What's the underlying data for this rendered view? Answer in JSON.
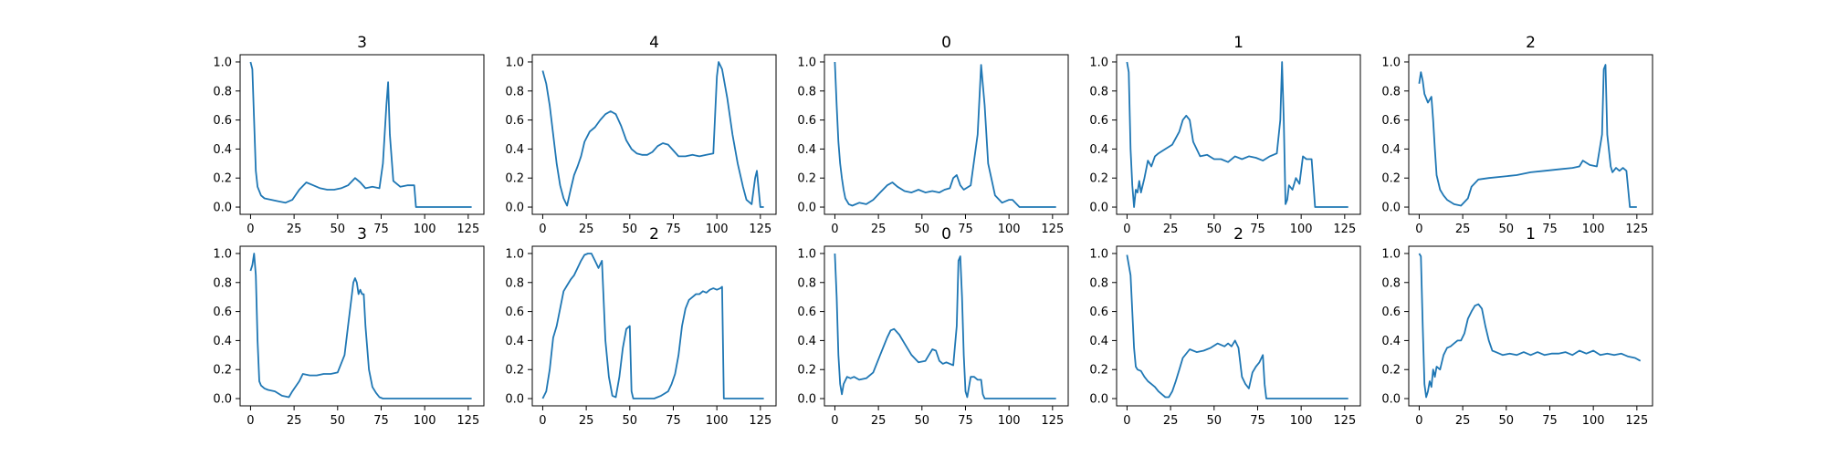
{
  "line_color": "#1f77b4",
  "chart_data": [
    {
      "type": "line",
      "title": "3",
      "xlim": [
        -6,
        134
      ],
      "ylim": [
        -0.05,
        1.05
      ],
      "xticks": [
        0,
        25,
        50,
        75,
        100,
        125
      ],
      "yticks": [
        0.0,
        0.2,
        0.4,
        0.6,
        0.8,
        1.0
      ],
      "x": [
        0,
        1,
        2,
        3,
        4,
        6,
        8,
        12,
        16,
        20,
        24,
        28,
        32,
        36,
        40,
        44,
        48,
        52,
        56,
        60,
        63,
        66,
        70,
        74,
        76,
        78,
        79,
        80,
        82,
        86,
        90,
        94,
        95,
        100,
        127
      ],
      "y": [
        1.0,
        0.95,
        0.6,
        0.25,
        0.14,
        0.08,
        0.06,
        0.05,
        0.04,
        0.03,
        0.05,
        0.12,
        0.17,
        0.15,
        0.13,
        0.12,
        0.12,
        0.13,
        0.15,
        0.2,
        0.17,
        0.13,
        0.14,
        0.13,
        0.3,
        0.7,
        0.86,
        0.5,
        0.18,
        0.14,
        0.15,
        0.15,
        0.0,
        0.0,
        0.0
      ]
    },
    {
      "type": "line",
      "title": "4",
      "xlim": [
        -6,
        134
      ],
      "ylim": [
        -0.05,
        1.05
      ],
      "xticks": [
        0,
        25,
        50,
        75,
        100,
        125
      ],
      "yticks": [
        0.0,
        0.2,
        0.4,
        0.6,
        0.8,
        1.0
      ],
      "x": [
        0,
        2,
        4,
        6,
        8,
        10,
        12,
        14,
        16,
        18,
        20,
        22,
        24,
        27,
        30,
        33,
        36,
        39,
        42,
        45,
        48,
        51,
        54,
        57,
        60,
        63,
        66,
        69,
        72,
        75,
        78,
        82,
        86,
        90,
        94,
        98,
        100,
        101,
        103,
        106,
        109,
        112,
        115,
        117,
        120,
        122,
        123,
        125,
        127
      ],
      "y": [
        0.94,
        0.85,
        0.7,
        0.5,
        0.3,
        0.15,
        0.06,
        0.01,
        0.12,
        0.22,
        0.28,
        0.35,
        0.45,
        0.52,
        0.55,
        0.6,
        0.64,
        0.66,
        0.64,
        0.56,
        0.46,
        0.4,
        0.37,
        0.36,
        0.36,
        0.38,
        0.42,
        0.44,
        0.43,
        0.39,
        0.35,
        0.35,
        0.36,
        0.35,
        0.36,
        0.37,
        0.9,
        1.0,
        0.95,
        0.75,
        0.5,
        0.3,
        0.14,
        0.05,
        0.02,
        0.2,
        0.25,
        0.0,
        0.0
      ]
    },
    {
      "type": "line",
      "title": "0",
      "xlim": [
        -6,
        134
      ],
      "ylim": [
        -0.05,
        1.05
      ],
      "xticks": [
        0,
        25,
        50,
        75,
        100,
        125
      ],
      "yticks": [
        0.0,
        0.2,
        0.4,
        0.6,
        0.8,
        1.0
      ],
      "x": [
        0,
        1,
        2,
        3,
        4,
        5,
        6,
        8,
        10,
        14,
        18,
        22,
        26,
        30,
        33,
        36,
        40,
        44,
        48,
        52,
        56,
        60,
        63,
        66,
        68,
        70,
        72,
        74,
        78,
        82,
        84,
        86,
        88,
        92,
        96,
        100,
        102,
        106,
        127
      ],
      "y": [
        1.0,
        0.7,
        0.45,
        0.3,
        0.2,
        0.12,
        0.06,
        0.02,
        0.01,
        0.03,
        0.02,
        0.05,
        0.1,
        0.15,
        0.17,
        0.14,
        0.11,
        0.1,
        0.12,
        0.1,
        0.11,
        0.1,
        0.12,
        0.13,
        0.2,
        0.22,
        0.15,
        0.12,
        0.15,
        0.5,
        0.98,
        0.7,
        0.3,
        0.08,
        0.03,
        0.05,
        0.05,
        0.0,
        0.0
      ]
    },
    {
      "type": "line",
      "title": "1",
      "xlim": [
        -6,
        134
      ],
      "ylim": [
        -0.05,
        1.05
      ],
      "xticks": [
        0,
        25,
        50,
        75,
        100,
        125
      ],
      "yticks": [
        0.0,
        0.2,
        0.4,
        0.6,
        0.8,
        1.0
      ],
      "x": [
        0,
        1,
        2,
        3,
        4,
        5,
        6,
        7,
        8,
        10,
        12,
        14,
        16,
        18,
        22,
        26,
        30,
        32,
        34,
        36,
        38,
        42,
        46,
        50,
        54,
        58,
        62,
        66,
        70,
        74,
        78,
        82,
        86,
        88,
        89,
        90,
        91,
        92,
        93,
        95,
        97,
        99,
        101,
        103,
        106,
        108,
        110,
        127
      ],
      "y": [
        1.0,
        0.93,
        0.4,
        0.15,
        0.0,
        0.12,
        0.1,
        0.18,
        0.1,
        0.2,
        0.32,
        0.28,
        0.35,
        0.37,
        0.4,
        0.43,
        0.52,
        0.6,
        0.63,
        0.6,
        0.45,
        0.35,
        0.36,
        0.33,
        0.33,
        0.31,
        0.35,
        0.33,
        0.35,
        0.34,
        0.32,
        0.35,
        0.37,
        0.6,
        1.0,
        0.6,
        0.02,
        0.05,
        0.15,
        0.12,
        0.2,
        0.16,
        0.35,
        0.33,
        0.33,
        0.0,
        0.0,
        0.0
      ]
    },
    {
      "type": "line",
      "title": "2",
      "xlim": [
        -6,
        134
      ],
      "ylim": [
        -0.05,
        1.05
      ],
      "xticks": [
        0,
        25,
        50,
        75,
        100,
        125
      ],
      "yticks": [
        0.0,
        0.2,
        0.4,
        0.6,
        0.8,
        1.0
      ],
      "x": [
        0,
        1,
        2,
        3,
        5,
        7,
        8,
        9,
        10,
        12,
        14,
        16,
        20,
        24,
        28,
        30,
        34,
        40,
        48,
        56,
        64,
        72,
        80,
        88,
        92,
        94,
        98,
        102,
        105,
        106,
        107,
        108,
        110,
        111,
        113,
        115,
        117,
        119,
        121,
        123,
        125
      ],
      "y": [
        0.85,
        0.93,
        0.87,
        0.78,
        0.72,
        0.76,
        0.6,
        0.4,
        0.22,
        0.12,
        0.08,
        0.05,
        0.02,
        0.01,
        0.06,
        0.14,
        0.19,
        0.2,
        0.21,
        0.22,
        0.24,
        0.25,
        0.26,
        0.27,
        0.28,
        0.32,
        0.29,
        0.28,
        0.5,
        0.95,
        0.98,
        0.5,
        0.28,
        0.24,
        0.27,
        0.25,
        0.27,
        0.25,
        0.0,
        0.0,
        0.0
      ]
    },
    {
      "type": "line",
      "title": "3",
      "xlim": [
        -6,
        134
      ],
      "ylim": [
        -0.05,
        1.05
      ],
      "xticks": [
        0,
        25,
        50,
        75,
        100,
        125
      ],
      "yticks": [
        0.0,
        0.2,
        0.4,
        0.6,
        0.8,
        1.0
      ],
      "x": [
        0,
        1,
        2,
        3,
        4,
        5,
        6,
        8,
        10,
        14,
        18,
        22,
        24,
        28,
        30,
        34,
        38,
        42,
        46,
        50,
        54,
        56,
        58,
        59,
        60,
        61,
        62,
        63,
        64,
        65,
        66,
        68,
        70,
        72,
        74,
        76,
        78,
        127
      ],
      "y": [
        0.88,
        0.92,
        1.0,
        0.85,
        0.4,
        0.12,
        0.09,
        0.07,
        0.06,
        0.05,
        0.02,
        0.01,
        0.05,
        0.12,
        0.17,
        0.16,
        0.16,
        0.17,
        0.17,
        0.18,
        0.3,
        0.5,
        0.7,
        0.8,
        0.83,
        0.8,
        0.72,
        0.75,
        0.72,
        0.72,
        0.5,
        0.2,
        0.08,
        0.04,
        0.01,
        0.0,
        0.0,
        0.0
      ]
    },
    {
      "type": "line",
      "title": "2",
      "xlim": [
        -6,
        134
      ],
      "ylim": [
        -0.05,
        1.05
      ],
      "xticks": [
        0,
        25,
        50,
        75,
        100,
        125
      ],
      "yticks": [
        0.0,
        0.2,
        0.4,
        0.6,
        0.8,
        1.0
      ],
      "x": [
        0,
        2,
        4,
        6,
        8,
        10,
        12,
        14,
        16,
        18,
        20,
        22,
        24,
        26,
        28,
        30,
        32,
        34,
        36,
        38,
        40,
        42,
        44,
        46,
        48,
        50,
        51,
        52,
        56,
        60,
        64,
        68,
        72,
        74,
        76,
        78,
        80,
        82,
        84,
        86,
        88,
        90,
        92,
        94,
        96,
        98,
        100,
        102,
        103,
        104,
        106,
        108,
        127
      ],
      "y": [
        0.0,
        0.05,
        0.2,
        0.42,
        0.5,
        0.62,
        0.74,
        0.78,
        0.82,
        0.85,
        0.9,
        0.95,
        0.99,
        1.0,
        1.0,
        0.95,
        0.9,
        0.95,
        0.4,
        0.15,
        0.02,
        0.01,
        0.15,
        0.35,
        0.48,
        0.5,
        0.05,
        0.0,
        0.0,
        0.0,
        0.0,
        0.02,
        0.05,
        0.1,
        0.17,
        0.3,
        0.5,
        0.62,
        0.68,
        0.7,
        0.72,
        0.72,
        0.74,
        0.73,
        0.75,
        0.76,
        0.75,
        0.76,
        0.77,
        0.0,
        0.0,
        0.0,
        0.0
      ]
    },
    {
      "type": "line",
      "title": "0",
      "xlim": [
        -6,
        134
      ],
      "ylim": [
        -0.05,
        1.05
      ],
      "xticks": [
        0,
        25,
        50,
        75,
        100,
        125
      ],
      "yticks": [
        0.0,
        0.2,
        0.4,
        0.6,
        0.8,
        1.0
      ],
      "x": [
        0,
        1,
        2,
        3,
        4,
        5,
        7,
        9,
        11,
        14,
        18,
        22,
        26,
        30,
        32,
        34,
        37,
        40,
        44,
        48,
        52,
        54,
        56,
        58,
        60,
        62,
        64,
        68,
        70,
        71,
        72,
        73,
        74,
        75,
        76,
        78,
        80,
        82,
        84,
        85,
        86,
        88,
        127
      ],
      "y": [
        1.0,
        0.7,
        0.3,
        0.1,
        0.03,
        0.1,
        0.15,
        0.14,
        0.15,
        0.13,
        0.14,
        0.18,
        0.3,
        0.42,
        0.47,
        0.48,
        0.44,
        0.38,
        0.3,
        0.25,
        0.26,
        0.3,
        0.34,
        0.33,
        0.26,
        0.24,
        0.25,
        0.23,
        0.5,
        0.95,
        0.98,
        0.7,
        0.3,
        0.05,
        0.01,
        0.15,
        0.15,
        0.13,
        0.13,
        0.03,
        0.0,
        0.0,
        0.0
      ]
    },
    {
      "type": "line",
      "title": "2",
      "xlim": [
        -6,
        134
      ],
      "ylim": [
        -0.05,
        1.05
      ],
      "xticks": [
        0,
        25,
        50,
        75,
        100,
        125
      ],
      "yticks": [
        0.0,
        0.2,
        0.4,
        0.6,
        0.8,
        1.0
      ],
      "x": [
        0,
        2,
        3,
        4,
        5,
        6,
        8,
        10,
        12,
        14,
        16,
        18,
        20,
        22,
        24,
        26,
        28,
        30,
        32,
        36,
        40,
        44,
        48,
        52,
        54,
        56,
        58,
        60,
        62,
        64,
        66,
        68,
        70,
        72,
        74,
        76,
        78,
        79,
        80,
        127
      ],
      "y": [
        0.99,
        0.85,
        0.6,
        0.35,
        0.22,
        0.2,
        0.19,
        0.15,
        0.12,
        0.1,
        0.08,
        0.05,
        0.03,
        0.01,
        0.01,
        0.05,
        0.12,
        0.2,
        0.28,
        0.34,
        0.32,
        0.33,
        0.35,
        0.38,
        0.37,
        0.36,
        0.38,
        0.36,
        0.4,
        0.35,
        0.15,
        0.1,
        0.07,
        0.18,
        0.22,
        0.25,
        0.3,
        0.1,
        0.0,
        0.0
      ]
    },
    {
      "type": "line",
      "title": "1",
      "xlim": [
        -6,
        134
      ],
      "ylim": [
        -0.05,
        1.05
      ],
      "xticks": [
        0,
        25,
        50,
        75,
        100,
        125
      ],
      "yticks": [
        0.0,
        0.2,
        0.4,
        0.6,
        0.8,
        1.0
      ],
      "x": [
        0,
        1,
        2,
        3,
        4,
        5,
        6,
        7,
        8,
        9,
        10,
        12,
        14,
        16,
        18,
        20,
        22,
        24,
        26,
        28,
        30,
        32,
        34,
        36,
        38,
        40,
        42,
        44,
        46,
        48,
        52,
        56,
        60,
        64,
        68,
        72,
        76,
        80,
        84,
        88,
        92,
        96,
        100,
        104,
        108,
        112,
        116,
        120,
        124,
        127
      ],
      "y": [
        1.0,
        0.98,
        0.5,
        0.1,
        0.01,
        0.05,
        0.12,
        0.08,
        0.2,
        0.15,
        0.22,
        0.2,
        0.3,
        0.35,
        0.36,
        0.38,
        0.4,
        0.4,
        0.45,
        0.55,
        0.6,
        0.64,
        0.65,
        0.62,
        0.5,
        0.4,
        0.33,
        0.32,
        0.31,
        0.3,
        0.31,
        0.3,
        0.32,
        0.3,
        0.32,
        0.3,
        0.31,
        0.31,
        0.32,
        0.3,
        0.33,
        0.31,
        0.33,
        0.3,
        0.31,
        0.3,
        0.31,
        0.29,
        0.28,
        0.26
      ]
    }
  ]
}
